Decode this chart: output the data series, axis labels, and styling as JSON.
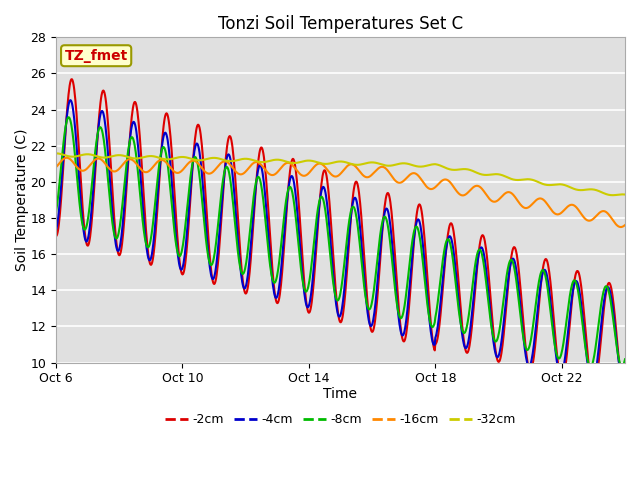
{
  "title": "Tonzi Soil Temperatures Set C",
  "xlabel": "Time",
  "ylabel": "Soil Temperature (C)",
  "ylim": [
    10,
    28
  ],
  "yticks": [
    10,
    12,
    14,
    16,
    18,
    20,
    22,
    24,
    26,
    28
  ],
  "xtick_labels": [
    "Oct 6",
    "Oct 10",
    "Oct 14",
    "Oct 18",
    "Oct 22"
  ],
  "xtick_positions": [
    0,
    4,
    8,
    12,
    16
  ],
  "series_colors": [
    "#dd0000",
    "#0000cc",
    "#00bb00",
    "#ff8800",
    "#cccc00"
  ],
  "series_labels": [
    "-2cm",
    "-4cm",
    "-8cm",
    "-16cm",
    "-32cm"
  ],
  "bg_color": "#ffffff",
  "plot_bg_color": "#e0e0e0",
  "annotation_text": "TZ_fmet",
  "annotation_color": "#cc0000",
  "annotation_bg": "#ffffcc",
  "annotation_border": "#999900",
  "title_fontsize": 12,
  "axis_fontsize": 10,
  "tick_fontsize": 9,
  "legend_fontsize": 9,
  "xstart": 0.0,
  "xend": 18.0,
  "npoints": 1000,
  "grid_color": "#ffffff",
  "grid_linewidth": 1.2
}
